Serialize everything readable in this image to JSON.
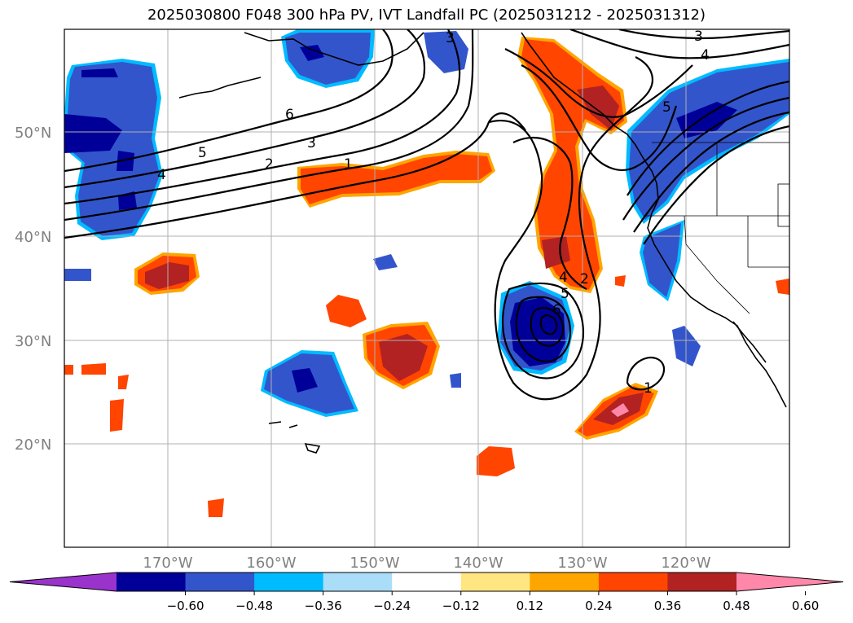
{
  "title": "2025030800 F048 300 hPa PV, IVT Landfall PC (2025031212 - 2025031312)",
  "map": {
    "lat_ticks": [
      "50°N",
      "40°N",
      "30°N",
      "20°N"
    ],
    "lon_ticks": [
      "170°W",
      "160°W",
      "150°W",
      "140°W",
      "130°W",
      "120°W"
    ],
    "gridlines": true,
    "coastline_color": "#000000"
  },
  "colorbar": {
    "tick_labels": [
      "−0.60",
      "−0.48",
      "−0.36",
      "−0.24",
      "−0.12",
      "0.12",
      "0.24",
      "0.36",
      "0.48",
      "0.60"
    ],
    "colors": [
      "#9933cc",
      "#000099",
      "#3355cc",
      "#00bbff",
      "#aaddf7",
      "#ffffff",
      "#ffe680",
      "#ffa500",
      "#ff4500",
      "#b22222",
      "#ff88aa"
    ]
  },
  "contour_labels": [
    "3",
    "4",
    "6",
    "5",
    "3",
    "2",
    "1",
    "4",
    "5",
    "2",
    "3",
    "4",
    "5",
    "6",
    "1"
  ],
  "legend_colors": {
    "pos_light": "#ffa500",
    "pos_mid": "#ff4500",
    "pos_dark": "#b22222",
    "pos_pink": "#ff88aa",
    "neg_light": "#00bbff",
    "neg_mid": "#3355cc",
    "neg_dark": "#000099"
  }
}
